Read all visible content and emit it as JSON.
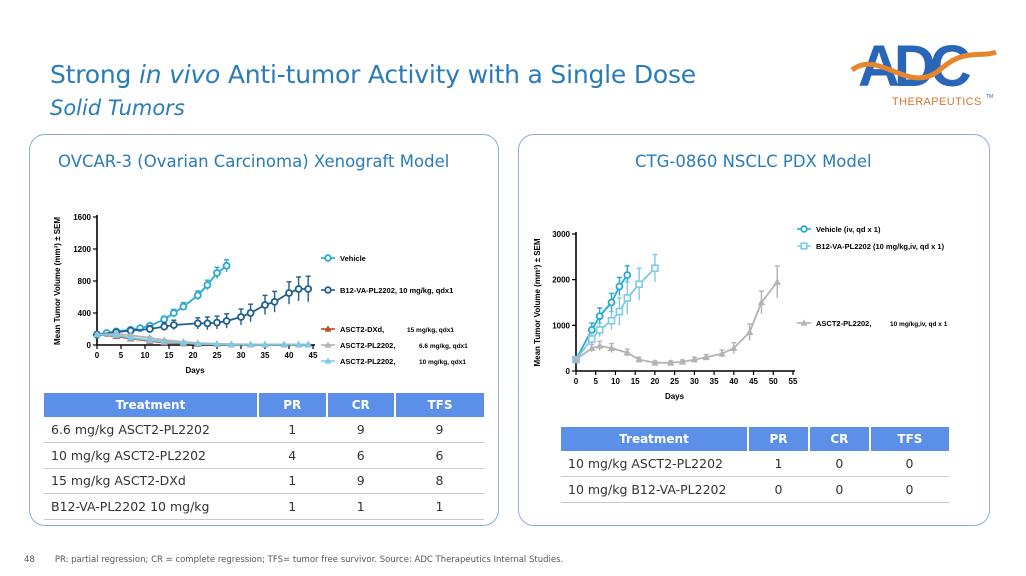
{
  "header": {
    "title_pre": "Strong ",
    "title_em": "in vivo",
    "title_post": " Anti-tumor Activity with a Single Dose",
    "subtitle": "Solid Tumors"
  },
  "logo": {
    "name": "ADC Therapeutics logo",
    "wordmark": "ADC",
    "tagline": "THERAPEUTICS",
    "tm": "TM"
  },
  "colors": {
    "accent": "#2a7cb8",
    "table_header": "#5b8fe8",
    "panel_border": "#8aaedb",
    "logo_orange": "#e6862c",
    "logo_blue": "#2966b8"
  },
  "left_panel": {
    "title": "OVCAR-3 (Ovarian Carcinoma) Xenograft Model",
    "table": {
      "headers": [
        "Treatment",
        "PR",
        "CR",
        "TFS"
      ],
      "rows": [
        [
          "6.6 mg/kg ASCT2-PL2202",
          "1",
          "9",
          "9"
        ],
        [
          "10 mg/kg ASCT2-PL2202",
          "4",
          "6",
          "6"
        ],
        [
          "15 mg/kg ASCT2-DXd",
          "1",
          "9",
          "8"
        ],
        [
          "B12-VA-PL2202 10 mg/kg",
          "1",
          "1",
          "1"
        ]
      ]
    }
  },
  "right_panel": {
    "title": "CTG-0860 NSCLC PDX Model",
    "table": {
      "headers": [
        "Treatment",
        "PR",
        "CR",
        "TFS"
      ],
      "rows": [
        [
          "10 mg/kg ASCT2-PL2202",
          "1",
          "0",
          "0"
        ],
        [
          "10 mg/kg B12-VA-PL2202",
          "0",
          "0",
          "0"
        ]
      ]
    }
  },
  "chart_data": [
    {
      "type": "line",
      "title": "OVCAR-3 (Ovarian Carcinoma) Xenograft Model",
      "xlabel": "Days",
      "ylabel": "Mean Tumor Volume (mm³) ± SEM",
      "xlim": [
        0,
        45
      ],
      "ylim": [
        0,
        1600
      ],
      "xticks": [
        0,
        5,
        10,
        15,
        20,
        25,
        30,
        35,
        40,
        45
      ],
      "yticks": [
        0,
        400,
        800,
        1200,
        1600
      ],
      "series": [
        {
          "name": "Vehicle",
          "label_main": "Vehicle",
          "label_sub": "",
          "color": "#27a8d6",
          "marker": "circle",
          "x": [
            0,
            2,
            4,
            7,
            9,
            11,
            14,
            16,
            18,
            21,
            23,
            25,
            27
          ],
          "y": [
            130,
            150,
            170,
            190,
            210,
            240,
            320,
            400,
            480,
            620,
            750,
            900,
            990
          ],
          "err": [
            15,
            20,
            22,
            25,
            28,
            30,
            40,
            45,
            50,
            55,
            60,
            70,
            75
          ]
        },
        {
          "name": "B12-VA-PL2202, 10 mg/kg, qdx1",
          "label_main": "B12-VA-PL2202, 10 mg/kg, qdx1",
          "label_sub": "",
          "color": "#1f5f8e",
          "marker": "circle",
          "x": [
            0,
            4,
            7,
            11,
            14,
            16,
            21,
            23,
            25,
            27,
            30,
            32,
            35,
            37,
            40,
            42,
            44
          ],
          "y": [
            130,
            160,
            180,
            200,
            230,
            250,
            270,
            270,
            280,
            300,
            350,
            400,
            500,
            540,
            650,
            700,
            700
          ],
          "err": [
            15,
            20,
            30,
            40,
            50,
            60,
            70,
            80,
            80,
            90,
            100,
            110,
            120,
            130,
            140,
            150,
            160
          ]
        },
        {
          "name": "ASCT2-DXd, 15 mg/kg, qdx1",
          "label_main": "ASCT2-DXd,",
          "label_sub": "15 mg/kg, qdx1",
          "color": "#b94a25",
          "marker": "triangle",
          "x": [
            0,
            4,
            7,
            11,
            14,
            18,
            21,
            25,
            28,
            32,
            35,
            39,
            42,
            44
          ],
          "y": [
            130,
            110,
            80,
            50,
            30,
            20,
            10,
            8,
            5,
            5,
            5,
            5,
            5,
            5
          ],
          "err": [
            15,
            15,
            12,
            10,
            8,
            6,
            5,
            4,
            3,
            3,
            3,
            3,
            3,
            3
          ]
        },
        {
          "name": "ASCT2-PL2202, 6.6 mg/kg, qdx1",
          "label_main": "ASCT2-PL2202,",
          "label_sub": "6.6 mg/kg, qdx1",
          "color": "#b3b3b3",
          "marker": "triangle",
          "x": [
            0,
            4,
            7,
            11,
            14,
            18,
            21,
            25,
            28,
            32,
            35,
            39,
            42,
            44
          ],
          "y": [
            130,
            140,
            120,
            90,
            60,
            40,
            25,
            15,
            10,
            8,
            5,
            5,
            5,
            5
          ],
          "err": [
            15,
            18,
            15,
            12,
            10,
            8,
            6,
            5,
            4,
            3,
            3,
            3,
            3,
            3
          ]
        },
        {
          "name": "ASCT2-PL2202, 10 mg/kg, qdx1",
          "label_main": "ASCT2-PL2202,",
          "label_sub": "10 mg/kg, qdx1",
          "color": "#7ec9e6",
          "marker": "triangle",
          "x": [
            0,
            4,
            7,
            11,
            14,
            18,
            21,
            25,
            28,
            32,
            35,
            39,
            42,
            44
          ],
          "y": [
            130,
            120,
            90,
            60,
            40,
            25,
            15,
            10,
            5,
            5,
            5,
            5,
            5,
            5
          ],
          "err": [
            15,
            15,
            12,
            10,
            8,
            6,
            5,
            4,
            3,
            3,
            3,
            3,
            3,
            3
          ]
        }
      ]
    },
    {
      "type": "line",
      "title": "CTG-0860 NSCLC PDX Model",
      "xlabel": "Days",
      "ylabel": "Mean Tumor Volume (mm³) ± SEM",
      "xlim": [
        0,
        55
      ],
      "ylim": [
        0,
        3000
      ],
      "xticks": [
        0,
        5,
        10,
        15,
        20,
        25,
        30,
        35,
        40,
        45,
        50,
        55
      ],
      "yticks": [
        0,
        1000,
        2000,
        3000
      ],
      "series": [
        {
          "name": "Vehicle (iv, qd x 1)",
          "label_main": "Vehicle (iv, qd x 1)",
          "label_sub": "",
          "color": "#27a8d6",
          "marker": "circle",
          "x": [
            0,
            4,
            6,
            9,
            11,
            13
          ],
          "y": [
            250,
            900,
            1200,
            1500,
            1850,
            2100
          ],
          "err": [
            30,
            150,
            180,
            200,
            200,
            200
          ]
        },
        {
          "name": "B12-VA-PL2202 (10 mg/kg,iv, qd x 1)",
          "label_main": "B12-VA-PL2202 (10 mg/kg,iv, qd x 1)",
          "label_sub": "",
          "color": "#7ec9e6",
          "marker": "square",
          "x": [
            0,
            4,
            6,
            9,
            11,
            13,
            16,
            20
          ],
          "y": [
            250,
            700,
            900,
            1100,
            1300,
            1600,
            1900,
            2250
          ],
          "err": [
            30,
            120,
            150,
            200,
            300,
            350,
            350,
            300
          ]
        },
        {
          "name": "ASCT2-PL2202, 10 mg/kg,iv, qd x 1",
          "label_main": "ASCT2-PL2202,",
          "label_sub": "10 mg/kg,iv, qd x 1",
          "color": "#b3b3b3",
          "marker": "triangle",
          "x": [
            0,
            4,
            6,
            9,
            13,
            16,
            20,
            24,
            27,
            30,
            33,
            37,
            40,
            44,
            47,
            51
          ],
          "y": [
            250,
            500,
            550,
            500,
            400,
            250,
            180,
            180,
            200,
            250,
            300,
            380,
            500,
            850,
            1500,
            1950
          ],
          "err": [
            30,
            80,
            100,
            100,
            80,
            50,
            40,
            40,
            40,
            50,
            60,
            80,
            120,
            180,
            250,
            350
          ]
        }
      ]
    }
  ],
  "footer": {
    "page_number": "48",
    "note": "PR: partial regression; CR = complete regression; TFS= tumor free survivor.",
    "source": "Source: ADC Therapeutics Internal Studies."
  }
}
